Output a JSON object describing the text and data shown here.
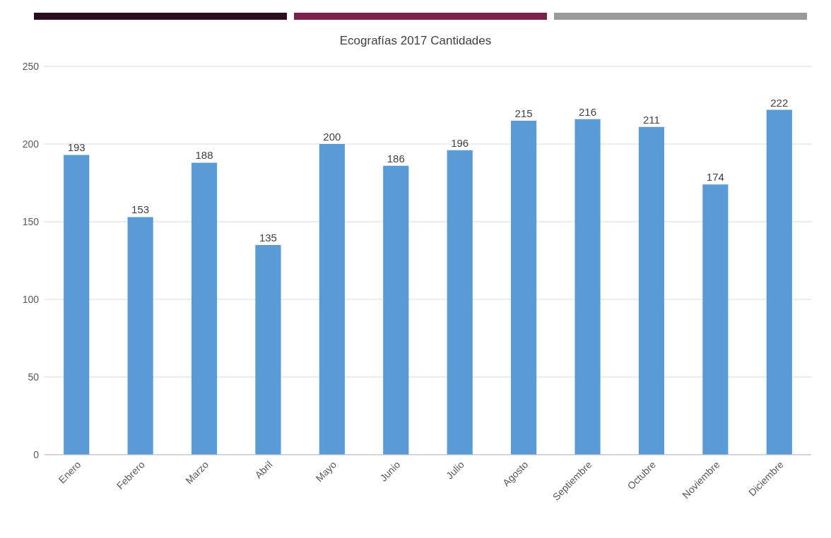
{
  "chart_data": {
    "type": "bar",
    "title": "Ecografías 2017 Cantidades",
    "categories": [
      "Enero",
      "Febrero",
      "Marzo",
      "Abril",
      "Mayo",
      "Junio",
      "Julio",
      "Agosto",
      "Septiembre",
      "Octubre",
      "Noviembre",
      "Diciembre"
    ],
    "values": [
      193,
      153,
      188,
      135,
      200,
      186,
      196,
      215,
      216,
      211,
      174,
      222
    ],
    "color": "#5b9bd5",
    "ylim": [
      0,
      250
    ],
    "yticks": [
      0,
      50,
      100,
      150,
      200,
      250
    ],
    "grid": "y",
    "data_labels": true
  }
}
